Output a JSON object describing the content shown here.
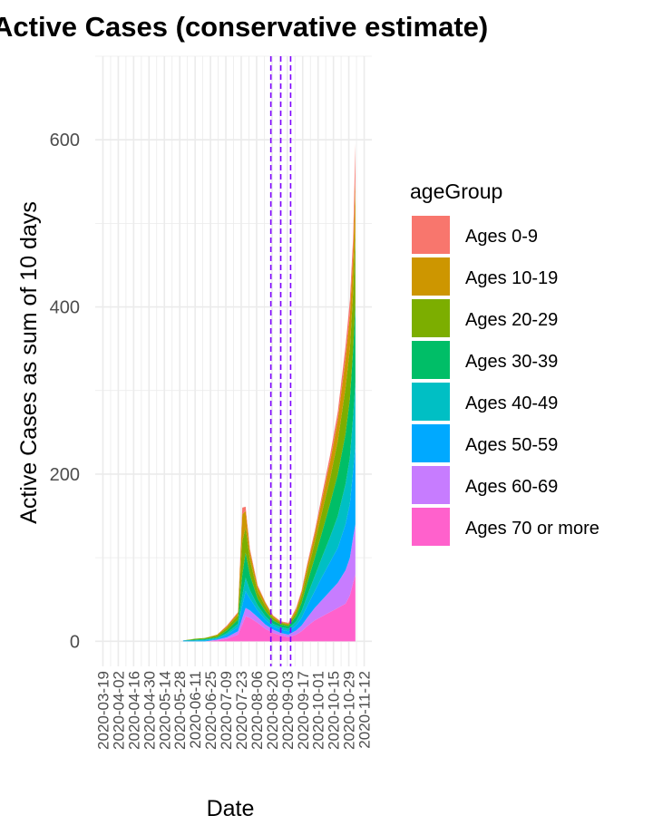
{
  "chart_data": {
    "type": "area",
    "stacked": true,
    "title": "Active Cases (conservative estimate)",
    "xlabel": "Date",
    "ylabel": "Active Cases as sum of 10 days",
    "ylim": [
      -30,
      700
    ],
    "yticks": [
      0,
      200,
      400,
      600
    ],
    "grid": true,
    "legend_title": "ageGroup",
    "legend_position": "right",
    "x_tick_labels": [
      "2020-03-19",
      "2020-04-02",
      "2020-04-16",
      "2020-04-30",
      "2020-05-14",
      "2020-05-28",
      "2020-06-11",
      "2020-06-25",
      "2020-07-09",
      "2020-07-23",
      "2020-08-06",
      "2020-08-20",
      "2020-09-03",
      "2020-09-17",
      "2020-10-01",
      "2020-10-15",
      "2020-10-29",
      "2020-11-12"
    ],
    "xlim": [
      "2020-03-12",
      "2020-11-19"
    ],
    "vlines": [
      "2020-08-19",
      "2020-08-28",
      "2020-09-06"
    ],
    "x": [
      "2020-05-31",
      "2020-06-10",
      "2020-06-20",
      "2020-07-01",
      "2020-07-10",
      "2020-07-20",
      "2020-07-24",
      "2020-07-27",
      "2020-07-31",
      "2020-08-07",
      "2020-08-14",
      "2020-08-21",
      "2020-08-28",
      "2020-09-04",
      "2020-09-11",
      "2020-09-16",
      "2020-09-21",
      "2020-09-28",
      "2020-10-05",
      "2020-10-12",
      "2020-10-19",
      "2020-10-26",
      "2020-10-30",
      "2020-11-02",
      "2020-11-04"
    ],
    "series": [
      {
        "name": "Ages 70 or more",
        "color": "#FF61CC",
        "values": [
          0,
          0,
          0,
          1,
          3,
          8,
          20,
          30,
          28,
          22,
          15,
          10,
          7,
          5,
          8,
          12,
          18,
          25,
          30,
          35,
          40,
          45,
          55,
          70,
          80
        ]
      },
      {
        "name": "Ages 60-69",
        "color": "#C77CFF",
        "values": [
          0,
          0,
          0,
          1,
          2,
          4,
          8,
          10,
          9,
          7,
          5,
          4,
          3,
          3,
          5,
          7,
          10,
          15,
          20,
          25,
          30,
          40,
          45,
          55,
          60
        ]
      },
      {
        "name": "Ages 50-59",
        "color": "#00A9FF",
        "values": [
          1,
          1,
          1,
          1,
          3,
          5,
          15,
          20,
          14,
          8,
          6,
          4,
          4,
          4,
          6,
          9,
          14,
          20,
          28,
          35,
          42,
          55,
          65,
          80,
          95
        ]
      },
      {
        "name": "Ages 40-49",
        "color": "#00BFC4",
        "values": [
          0,
          0,
          1,
          1,
          2,
          4,
          12,
          16,
          10,
          6,
          4,
          3,
          3,
          3,
          5,
          8,
          12,
          18,
          24,
          30,
          38,
          48,
          55,
          65,
          75
        ]
      },
      {
        "name": "Ages 30-39",
        "color": "#00BE67",
        "values": [
          0,
          1,
          1,
          1,
          3,
          5,
          25,
          30,
          18,
          8,
          6,
          4,
          3,
          3,
          6,
          10,
          15,
          22,
          30,
          40,
          50,
          60,
          70,
          80,
          95
        ]
      },
      {
        "name": "Ages 20-29",
        "color": "#7CAE00",
        "values": [
          0,
          1,
          1,
          2,
          3,
          5,
          40,
          30,
          18,
          8,
          6,
          3,
          2,
          2,
          5,
          8,
          12,
          18,
          25,
          30,
          40,
          55,
          60,
          70,
          85
        ]
      },
      {
        "name": "Ages 10-19",
        "color": "#CD9600",
        "values": [
          0,
          0,
          0,
          1,
          2,
          3,
          32,
          20,
          10,
          6,
          4,
          2,
          1,
          1,
          3,
          5,
          8,
          10,
          15,
          20,
          25,
          35,
          40,
          45,
          60
        ]
      },
      {
        "name": "Ages 0-9",
        "color": "#F8766D",
        "values": [
          0,
          0,
          0,
          0,
          1,
          1,
          8,
          5,
          3,
          2,
          1,
          1,
          1,
          1,
          2,
          2,
          3,
          4,
          6,
          8,
          10,
          15,
          18,
          20,
          45
        ]
      }
    ],
    "legend_order": [
      "Ages 0-9",
      "Ages 10-19",
      "Ages 20-29",
      "Ages 30-39",
      "Ages 40-49",
      "Ages 50-59",
      "Ages 60-69",
      "Ages 70 or more"
    ],
    "vline_color": "#7F00FF",
    "grid_color": "#EBEBEB"
  }
}
